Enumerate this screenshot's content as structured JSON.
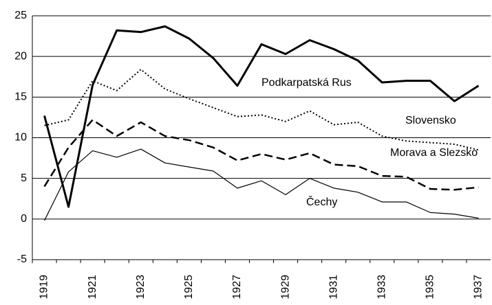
{
  "chart_data": {
    "type": "line",
    "categories": [
      "1919",
      null,
      "1921",
      null,
      "1923",
      null,
      "1925",
      null,
      "1927",
      null,
      "1929",
      null,
      "1931",
      null,
      "1933",
      null,
      "1935",
      null,
      "1937"
    ],
    "series": [
      {
        "name": "Podkarpatská Rus",
        "color": "#000000",
        "width": 3,
        "dash": "none",
        "values": [
          12.7,
          1.5,
          16.5,
          23.2,
          23.0,
          23.7,
          22.2,
          19.8,
          16.4,
          21.5,
          20.3,
          22.0,
          20.9,
          19.5,
          16.8,
          17.0,
          17.0,
          14.5,
          16.4
        ]
      },
      {
        "name": "Slovensko",
        "color": "#000000",
        "width": 2,
        "dash": "2 3",
        "values": [
          11.5,
          12.2,
          17.0,
          15.8,
          18.4,
          16.0,
          14.8,
          13.7,
          12.6,
          12.8,
          12.0,
          13.3,
          11.6,
          11.9,
          10.2,
          9.6,
          9.4,
          9.2,
          8.5
        ]
      },
      {
        "name": "Morava a Slezsko",
        "color": "#000000",
        "width": 2.5,
        "dash": "12 6",
        "values": [
          4.0,
          8.8,
          12.2,
          10.2,
          11.9,
          10.2,
          9.7,
          8.8,
          7.2,
          8.0,
          7.3,
          8.1,
          6.7,
          6.5,
          5.3,
          5.2,
          3.7,
          3.6,
          3.9
        ]
      },
      {
        "name": "Čechy",
        "color": "#000000",
        "width": 1.2,
        "dash": "none",
        "values": [
          -0.2,
          5.8,
          8.4,
          7.6,
          8.6,
          6.9,
          6.4,
          5.9,
          3.8,
          4.7,
          3.0,
          5.0,
          3.8,
          3.3,
          2.1,
          2.1,
          0.8,
          0.6,
          0.1
        ]
      }
    ],
    "ylim": [
      -5,
      25
    ],
    "yticks": [
      -5,
      0,
      5,
      10,
      15,
      20,
      25
    ],
    "grid": true
  }
}
